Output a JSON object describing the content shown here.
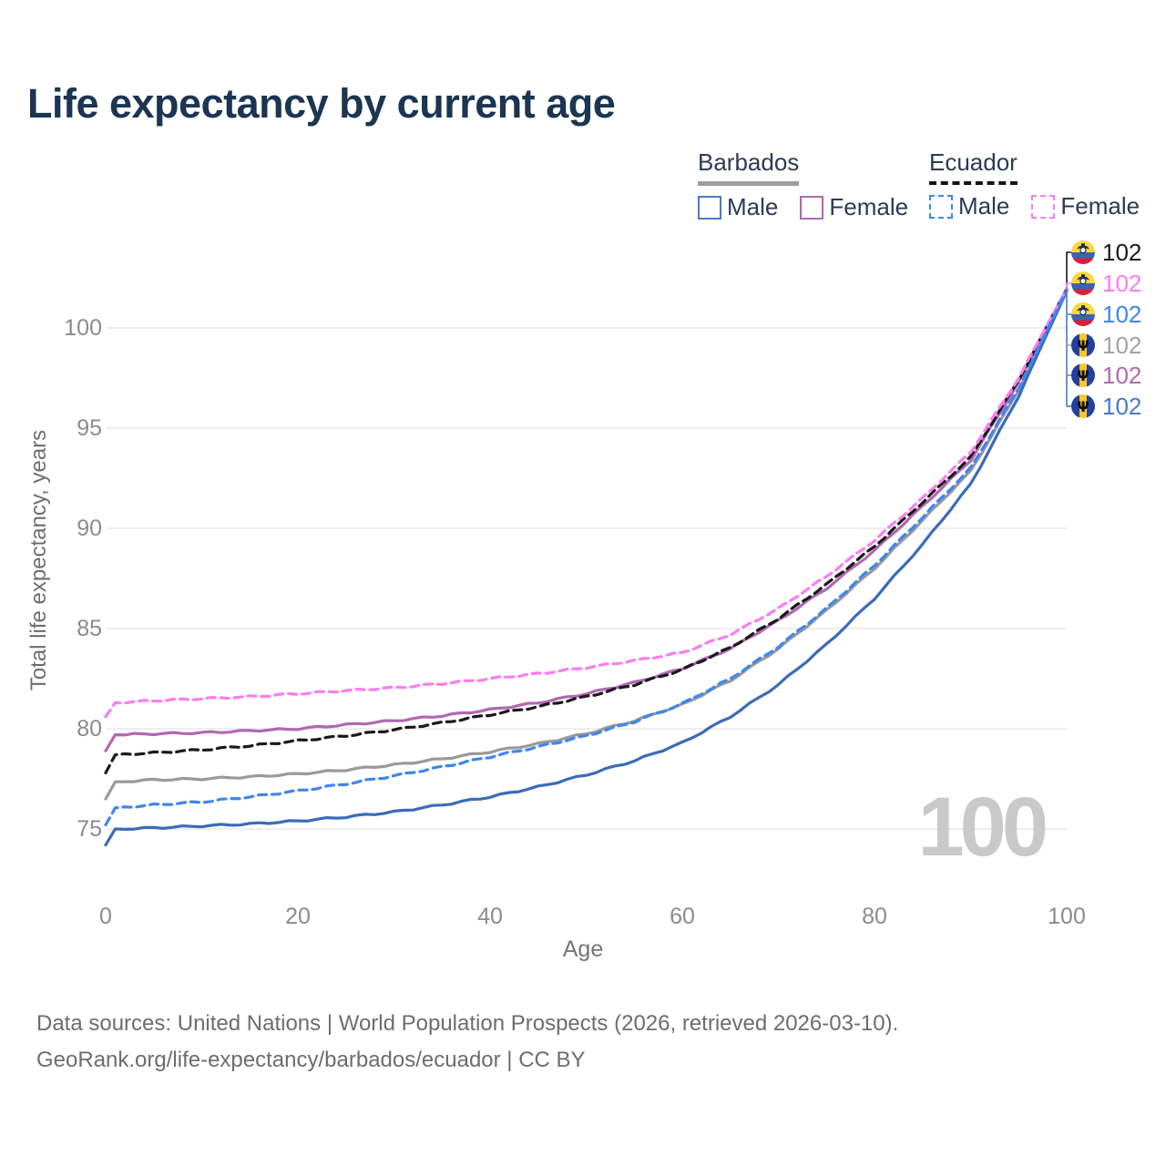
{
  "title": "Life expectancy by current age",
  "legend": {
    "groups": [
      {
        "name": "Barbados",
        "line_style": "solid",
        "underline_color": "#9e9e9e",
        "items": [
          {
            "label": "Male",
            "color": "#4a7bc4"
          },
          {
            "label": "Female",
            "color": "#b168b1"
          }
        ]
      },
      {
        "name": "Ecuador",
        "line_style": "dashed",
        "underline_color": "#141414",
        "items": [
          {
            "label": "Male",
            "color": "#3f86f0"
          },
          {
            "label": "Female",
            "color": "#fb7df0"
          }
        ]
      }
    ]
  },
  "end_labels": [
    {
      "flag": "ecuador",
      "series": "Ecuador Both sexes",
      "value": "102",
      "color": "#1a1a1a"
    },
    {
      "flag": "ecuador",
      "series": "Ecuador Female",
      "value": "102",
      "color": "#fb7df0"
    },
    {
      "flag": "ecuador",
      "series": "Ecuador Male",
      "value": "102",
      "color": "#3f86f0"
    },
    {
      "flag": "barbados",
      "series": "Barbados Both sexes",
      "value": "102",
      "color": "#a3a3a3"
    },
    {
      "flag": "barbados",
      "series": "Barbados Female",
      "value": "102",
      "color": "#b168b1"
    },
    {
      "flag": "barbados",
      "series": "Barbados Male",
      "value": "102",
      "color": "#4a7bc4"
    }
  ],
  "watermark": "100",
  "axes": {
    "x": {
      "title": "Age",
      "ticks": [
        "0",
        "20",
        "40",
        "60",
        "80",
        "100"
      ],
      "range": [
        0,
        100
      ]
    },
    "y": {
      "title": "Total life expectancy, years",
      "ticks": [
        "100",
        "95",
        "90",
        "85",
        "80",
        "75"
      ],
      "range": [
        73.5,
        103
      ],
      "grid": true
    }
  },
  "footer": {
    "line1": "Data sources: United Nations | World Population Prospects (2026, retrieved 2026-03-10).",
    "line2": "GeoRank.org/life-expectancy/barbados/ecuador | CC BY"
  },
  "chart_data": {
    "type": "line",
    "title": "Life expectancy by current age",
    "xlabel": "Age",
    "ylabel": "Total life expectancy, years",
    "xlim": [
      0,
      100
    ],
    "ylim": [
      73.5,
      103
    ],
    "grid": "horizontal",
    "legend_position": "top-right",
    "x": [
      0,
      1,
      5,
      10,
      15,
      20,
      25,
      30,
      35,
      40,
      45,
      50,
      55,
      60,
      65,
      70,
      75,
      80,
      85,
      90,
      95,
      100
    ],
    "series": [
      {
        "name": "Barbados Both sexes",
        "country": "Barbados",
        "sex": "Both",
        "color": "#9a9a9a",
        "dash": false,
        "values": [
          76.5,
          77.35,
          77.45,
          77.5,
          77.6,
          77.75,
          77.95,
          78.2,
          78.5,
          78.85,
          79.25,
          79.75,
          80.4,
          81.2,
          82.4,
          84.0,
          85.9,
          88.0,
          90.4,
          92.85,
          96.9,
          101.85
        ]
      },
      {
        "name": "Barbados Female",
        "country": "Barbados",
        "sex": "Female",
        "color": "#b168b1",
        "dash": false,
        "values": [
          78.9,
          79.7,
          79.75,
          79.8,
          79.9,
          80.0,
          80.2,
          80.4,
          80.65,
          80.95,
          81.3,
          81.75,
          82.3,
          83.0,
          84.0,
          85.4,
          87.0,
          88.9,
          91.1,
          93.4,
          97.3,
          101.9
        ]
      },
      {
        "name": "Barbados Male",
        "country": "Barbados",
        "sex": "Male",
        "color": "#3a6cb7",
        "dash": false,
        "values": [
          74.2,
          75.0,
          75.05,
          75.15,
          75.25,
          75.4,
          75.6,
          75.85,
          76.2,
          76.6,
          77.1,
          77.7,
          78.4,
          79.3,
          80.6,
          82.2,
          84.2,
          86.5,
          89.2,
          92.2,
          96.6,
          101.85
        ]
      },
      {
        "name": "Ecuador Both sexes",
        "country": "Ecuador",
        "sex": "Both",
        "color": "#1a1a1a",
        "dash": true,
        "values": [
          77.8,
          78.7,
          78.8,
          78.95,
          79.15,
          79.4,
          79.65,
          79.95,
          80.3,
          80.7,
          81.1,
          81.6,
          82.2,
          82.95,
          84.05,
          85.5,
          87.2,
          89.1,
          91.3,
          93.55,
          97.4,
          101.95
        ]
      },
      {
        "name": "Ecuador Female",
        "country": "Ecuador",
        "sex": "Female",
        "color": "#fb7df0",
        "dash": true,
        "values": [
          80.6,
          81.3,
          81.4,
          81.5,
          81.6,
          81.75,
          81.9,
          82.05,
          82.25,
          82.5,
          82.75,
          83.05,
          83.4,
          83.8,
          84.7,
          86.0,
          87.6,
          89.4,
          91.5,
          93.8,
          97.5,
          101.95
        ]
      },
      {
        "name": "Ecuador Male",
        "country": "Ecuador",
        "sex": "Male",
        "color": "#3f86f0",
        "dash": true,
        "values": [
          75.2,
          76.05,
          76.2,
          76.35,
          76.6,
          76.9,
          77.25,
          77.65,
          78.1,
          78.6,
          79.1,
          79.65,
          80.35,
          81.25,
          82.5,
          84.1,
          86.0,
          88.15,
          90.55,
          93.0,
          97.0,
          101.9
        ]
      }
    ],
    "end_value_labels": [
      102,
      102,
      102,
      102,
      102,
      102
    ]
  }
}
